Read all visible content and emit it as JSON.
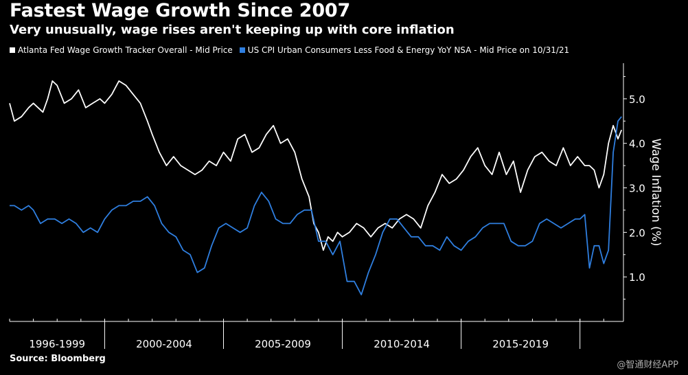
{
  "header": {
    "title": "Fastest Wage Growth Since 2007",
    "subtitle": "Very unusually, wage rises aren't keeping up with core inflation"
  },
  "footer": {
    "source": "Source: Bloomberg",
    "brand": "Bloomberg",
    "watermark": "@智通财经APP"
  },
  "colors": {
    "background": "#000000",
    "wage": "#ffffff",
    "cpi": "#2f7fe0",
    "axis": "#ffffff",
    "text": "#ffffff"
  },
  "chart_data": {
    "type": "line",
    "title": "Fastest Wage Growth Since 2007",
    "ylabel": "Wage Inflation (%)",
    "xlabel": "",
    "xlim": [
      1996.0,
      2021.83
    ],
    "ylim": [
      0.0,
      5.8
    ],
    "yticks": [
      1.0,
      2.0,
      3.0,
      4.0,
      5.0
    ],
    "ytick_labels": [
      "1.0",
      "2.0",
      "3.0",
      "4.0",
      "5.0"
    ],
    "x_dividers": [
      2000,
      2005,
      2010,
      2015,
      2020
    ],
    "x_period_labels": [
      {
        "label": "1996-1999",
        "center": 1998.0
      },
      {
        "label": "2000-2004",
        "center": 2002.5
      },
      {
        "label": "2005-2009",
        "center": 2007.5
      },
      {
        "label": "2010-2014",
        "center": 2012.5
      },
      {
        "label": "2015-2019",
        "center": 2017.5
      }
    ],
    "series": [
      {
        "name": "Atlanta Fed Wage Growth Tracker Overall - Mid Price",
        "color": "#ffffff",
        "x": [
          1996.0,
          1996.2,
          1996.5,
          1996.8,
          1997.0,
          1997.2,
          1997.4,
          1997.6,
          1997.8,
          1998.0,
          1998.3,
          1998.6,
          1998.9,
          1999.2,
          1999.5,
          1999.8,
          2000.0,
          2000.3,
          2000.6,
          2000.9,
          2001.2,
          2001.5,
          2001.8,
          2002.0,
          2002.3,
          2002.6,
          2002.9,
          2003.2,
          2003.5,
          2003.8,
          2004.1,
          2004.4,
          2004.7,
          2005.0,
          2005.3,
          2005.6,
          2005.9,
          2006.2,
          2006.5,
          2006.8,
          2007.1,
          2007.4,
          2007.7,
          2008.0,
          2008.3,
          2008.6,
          2008.8,
          2009.0,
          2009.2,
          2009.4,
          2009.6,
          2009.8,
          2010.0,
          2010.3,
          2010.6,
          2010.9,
          2011.2,
          2011.5,
          2011.8,
          2012.1,
          2012.4,
          2012.7,
          2013.0,
          2013.3,
          2013.6,
          2013.9,
          2014.2,
          2014.5,
          2014.8,
          2015.1,
          2015.4,
          2015.7,
          2016.0,
          2016.3,
          2016.6,
          2016.9,
          2017.2,
          2017.5,
          2017.8,
          2018.1,
          2018.4,
          2018.7,
          2019.0,
          2019.3,
          2019.6,
          2019.9,
          2020.2,
          2020.4,
          2020.6,
          2020.8,
          2021.0,
          2021.2,
          2021.4,
          2021.6,
          2021.75
        ],
        "values": [
          4.9,
          4.5,
          4.6,
          4.8,
          4.9,
          4.8,
          4.7,
          5.0,
          5.4,
          5.3,
          4.9,
          5.0,
          5.2,
          4.8,
          4.9,
          5.0,
          4.9,
          5.1,
          5.4,
          5.3,
          5.1,
          4.9,
          4.5,
          4.2,
          3.8,
          3.5,
          3.7,
          3.5,
          3.4,
          3.3,
          3.4,
          3.6,
          3.5,
          3.8,
          3.6,
          4.1,
          4.2,
          3.8,
          3.9,
          4.2,
          4.4,
          4.0,
          4.1,
          3.8,
          3.2,
          2.8,
          2.2,
          2.0,
          1.6,
          1.9,
          1.8,
          2.0,
          1.9,
          2.0,
          2.2,
          2.1,
          1.9,
          2.1,
          2.2,
          2.1,
          2.3,
          2.4,
          2.3,
          2.1,
          2.6,
          2.9,
          3.3,
          3.1,
          3.2,
          3.4,
          3.7,
          3.9,
          3.5,
          3.3,
          3.8,
          3.3,
          3.6,
          2.9,
          3.4,
          3.7,
          3.8,
          3.6,
          3.5,
          3.9,
          3.5,
          3.7,
          3.5,
          3.5,
          3.4,
          3.0,
          3.3,
          4.0,
          4.4,
          4.1,
          4.3
        ]
      },
      {
        "name": "US CPI Urban Consumers Less Food & Energy YoY NSA - Mid Price on 10/31/21",
        "color": "#2f7fe0",
        "x": [
          1996.0,
          1996.2,
          1996.5,
          1996.8,
          1997.0,
          1997.3,
          1997.6,
          1997.9,
          1998.2,
          1998.5,
          1998.8,
          1999.1,
          1999.4,
          1999.7,
          2000.0,
          2000.3,
          2000.6,
          2000.9,
          2001.2,
          2001.5,
          2001.8,
          2002.1,
          2002.4,
          2002.7,
          2003.0,
          2003.3,
          2003.6,
          2003.9,
          2004.2,
          2004.5,
          2004.8,
          2005.1,
          2005.4,
          2005.7,
          2006.0,
          2006.3,
          2006.6,
          2006.9,
          2007.2,
          2007.5,
          2007.8,
          2008.1,
          2008.4,
          2008.7,
          2009.0,
          2009.3,
          2009.6,
          2009.9,
          2010.2,
          2010.5,
          2010.8,
          2011.1,
          2011.4,
          2011.7,
          2012.0,
          2012.3,
          2012.6,
          2012.9,
          2013.2,
          2013.5,
          2013.8,
          2014.1,
          2014.4,
          2014.7,
          2015.0,
          2015.3,
          2015.6,
          2015.9,
          2016.2,
          2016.5,
          2016.8,
          2017.1,
          2017.4,
          2017.7,
          2018.0,
          2018.3,
          2018.6,
          2018.9,
          2019.2,
          2019.5,
          2019.8,
          2020.0,
          2020.2,
          2020.4,
          2020.6,
          2020.8,
          2021.0,
          2021.2,
          2021.4,
          2021.6,
          2021.75
        ],
        "values": [
          2.6,
          2.6,
          2.5,
          2.6,
          2.5,
          2.2,
          2.3,
          2.3,
          2.2,
          2.3,
          2.2,
          2.0,
          2.1,
          2.0,
          2.3,
          2.5,
          2.6,
          2.6,
          2.7,
          2.7,
          2.8,
          2.6,
          2.2,
          2.0,
          1.9,
          1.6,
          1.5,
          1.1,
          1.2,
          1.7,
          2.1,
          2.2,
          2.1,
          2.0,
          2.1,
          2.6,
          2.9,
          2.7,
          2.3,
          2.2,
          2.2,
          2.4,
          2.5,
          2.5,
          1.8,
          1.8,
          1.5,
          1.8,
          0.9,
          0.9,
          0.6,
          1.1,
          1.5,
          2.0,
          2.3,
          2.3,
          2.1,
          1.9,
          1.9,
          1.7,
          1.7,
          1.6,
          1.9,
          1.7,
          1.6,
          1.8,
          1.9,
          2.1,
          2.2,
          2.2,
          2.2,
          1.8,
          1.7,
          1.7,
          1.8,
          2.2,
          2.3,
          2.2,
          2.1,
          2.2,
          2.3,
          2.3,
          2.4,
          1.2,
          1.7,
          1.7,
          1.3,
          1.6,
          3.8,
          4.5,
          4.6
        ]
      }
    ]
  }
}
